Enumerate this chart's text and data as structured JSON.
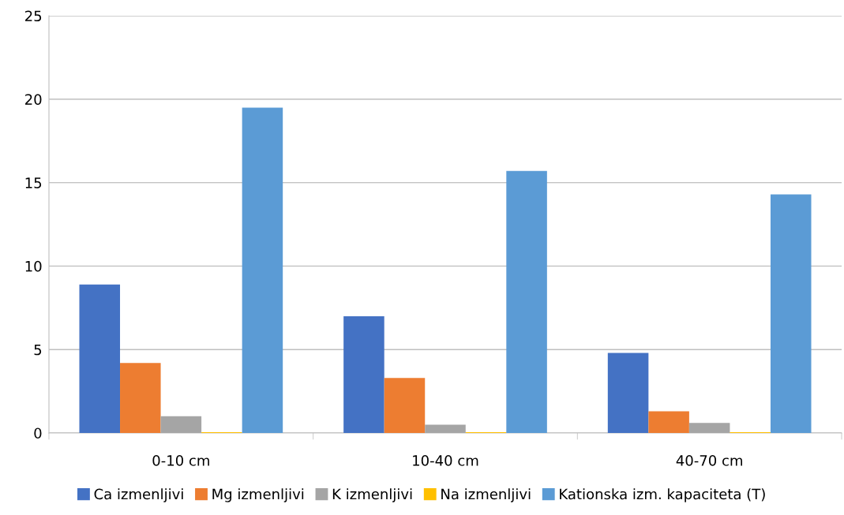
{
  "chart_data": {
    "type": "bar",
    "categories": [
      "0-10 cm",
      "10-40 cm",
      "40-70 cm"
    ],
    "series": [
      {
        "name": "Ca izmenljivi",
        "color": "#4472c4",
        "values": [
          8.9,
          7.0,
          4.8
        ]
      },
      {
        "name": "Mg izmenljivi",
        "color": "#ed7d31",
        "values": [
          4.2,
          3.3,
          1.3
        ]
      },
      {
        "name": "K izmenljivi",
        "color": "#a5a5a5",
        "values": [
          1.0,
          0.5,
          0.6
        ]
      },
      {
        "name": "Na izmenljivi",
        "color": "#ffc000",
        "values": [
          0.05,
          0.05,
          0.05
        ]
      },
      {
        "name": "Kationska izm. kapaciteta (T)",
        "color": "#5b9bd5",
        "values": [
          19.5,
          15.7,
          14.3
        ]
      }
    ],
    "ylim": [
      0,
      25
    ],
    "yticks": [
      0,
      5,
      10,
      15,
      20,
      25
    ],
    "grid": "y",
    "legend": "bottom"
  }
}
